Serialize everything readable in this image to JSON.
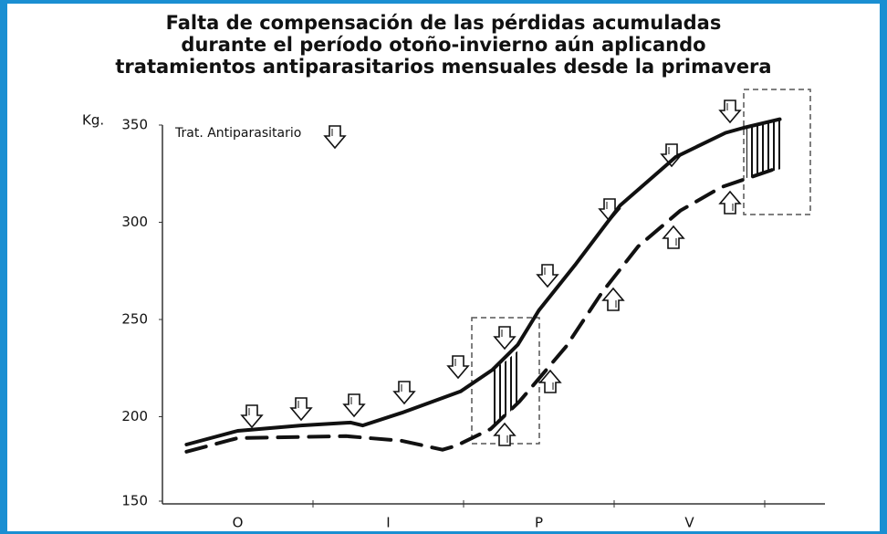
{
  "chart_data": {
    "type": "line",
    "title": [
      "Falta de compensación de las pérdidas acumuladas",
      "durante el período otoño-invierno aún aplicando",
      "tratamientos antiparasitarios mensuales desde la primavera"
    ],
    "ylabel": "Kg.",
    "annotation": "Trat. Antiparasitario",
    "categories": [
      "O",
      "I",
      "P",
      "V"
    ],
    "xlim": [
      0,
      4.4
    ],
    "ylim": [
      150,
      350
    ],
    "yticks": [
      150,
      200,
      250,
      300,
      350
    ],
    "series": [
      {
        "color": "#111111",
        "dashed": false,
        "x": [
          0.16,
          0.5,
          0.92,
          1.25,
          1.33,
          1.59,
          1.98,
          2.19,
          2.36,
          2.5,
          2.74,
          3.04,
          3.41,
          3.74,
          3.86,
          4.1
        ],
        "values": [
          185.7,
          192.7,
          195.5,
          197,
          195.5,
          202,
          213,
          224,
          237,
          254.7,
          278,
          308.7,
          333.6,
          346,
          348.6,
          353
        ]
      },
      {
        "color": "#111111",
        "dashed": true,
        "x": [
          0.16,
          0.5,
          1.22,
          1.59,
          1.86,
          1.95,
          2.18,
          2.37,
          2.68,
          2.92,
          3.16,
          3.44,
          3.71,
          4.07
        ],
        "values": [
          182,
          189,
          190,
          187.6,
          183,
          185,
          193.7,
          207.7,
          236,
          264,
          287.6,
          306,
          318,
          327.5
        ]
      }
    ]
  }
}
